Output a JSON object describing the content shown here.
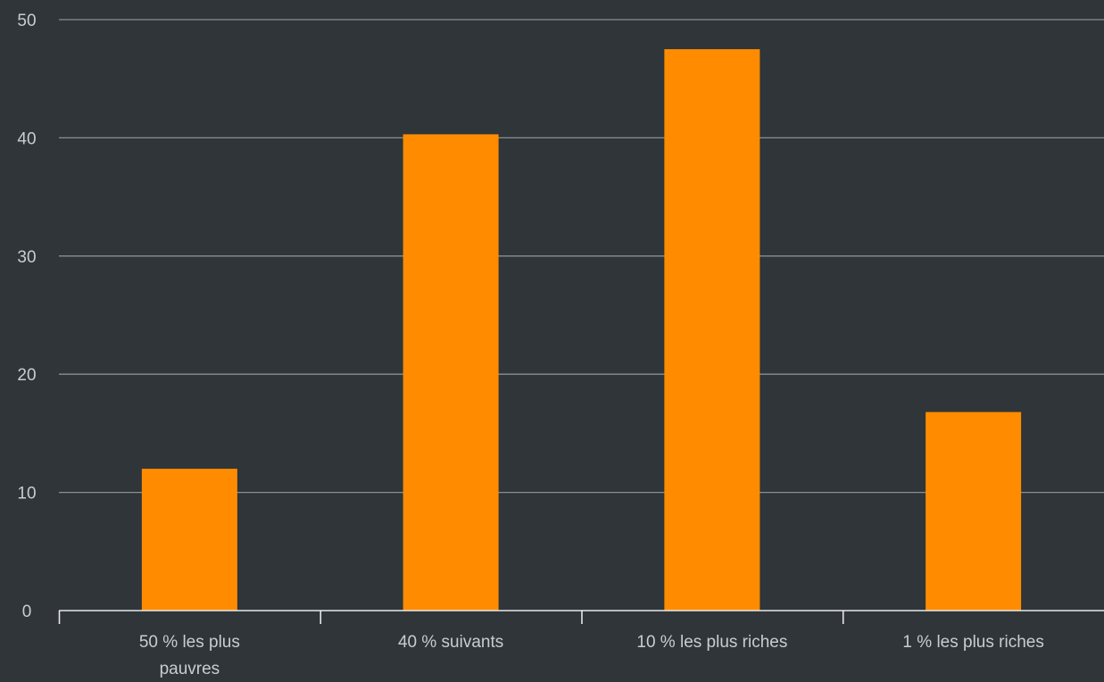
{
  "colors": {
    "background": "#2f3538",
    "bar": "#ff8c00",
    "grid": "#8a8f92",
    "axis": "#e6e8ea",
    "text": "#c9cdcf"
  },
  "chart_data": {
    "type": "bar",
    "categories": [
      "50 % les plus pauvres",
      "40 % suivants",
      "10 % les plus riches",
      "1 % les plus riches"
    ],
    "category_label_lines": [
      [
        "50 % les plus",
        "pauvres"
      ],
      [
        "40 % suivants"
      ],
      [
        "10 % les plus riches"
      ],
      [
        "1 % les plus riches"
      ]
    ],
    "values": [
      12,
      40.3,
      47.5,
      16.8
    ],
    "ylim": [
      0,
      50
    ],
    "yticks": [
      "0",
      "10",
      "20",
      "30",
      "40",
      "50"
    ],
    "title": "",
    "xlabel": "",
    "ylabel": "",
    "grid": true,
    "legend": "none"
  }
}
